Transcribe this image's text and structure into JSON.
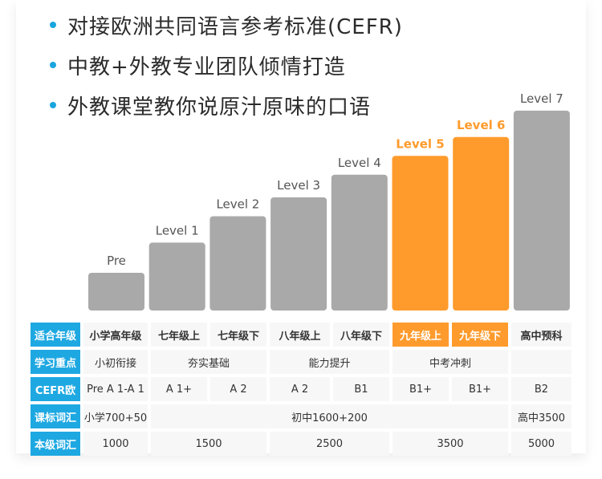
{
  "bullets": [
    "对接欧洲共同语言参考标准(CEFR)",
    "中教+外教专业团队倾情打造",
    "外教课堂教你说原汁原味的口语"
  ],
  "colors": {
    "bar": "#a9a9a9",
    "highlight": "#ff9b2c",
    "accent": "#1ea8e2"
  },
  "chart_data": {
    "type": "bar",
    "categories": [
      "Pre",
      "Level 1",
      "Level 2",
      "Level 3",
      "Level 4",
      "Level 5",
      "Level 6",
      "Level 7"
    ],
    "values": [
      1,
      1.8,
      2.5,
      3.0,
      3.6,
      4.1,
      4.6,
      5.3
    ],
    "highlighted": [
      "Level 5",
      "Level 6"
    ]
  },
  "table": {
    "row_headers": [
      "适合年级",
      "学习重点",
      "CEFR欧",
      "课标词汇",
      "本级词汇"
    ],
    "grades": [
      "小学高年级",
      "七年级上",
      "七年级下",
      "八年级上",
      "八年级下",
      "九年级上",
      "九年级下",
      "高中预科"
    ],
    "focus": [
      "小初衔接",
      "夯实基础",
      "能力提升",
      "中考冲刺",
      ""
    ],
    "cefr": [
      "Pre A 1-A 1",
      "A 1+",
      "A 2",
      "A 2",
      "B1",
      "B1+",
      "B1+",
      "B2"
    ],
    "syllabus_vocab": [
      "小学700+50",
      "初中1600+200",
      "高中3500"
    ],
    "level_vocab": [
      "1000",
      "1500",
      "2500",
      "3500",
      "5000"
    ]
  }
}
